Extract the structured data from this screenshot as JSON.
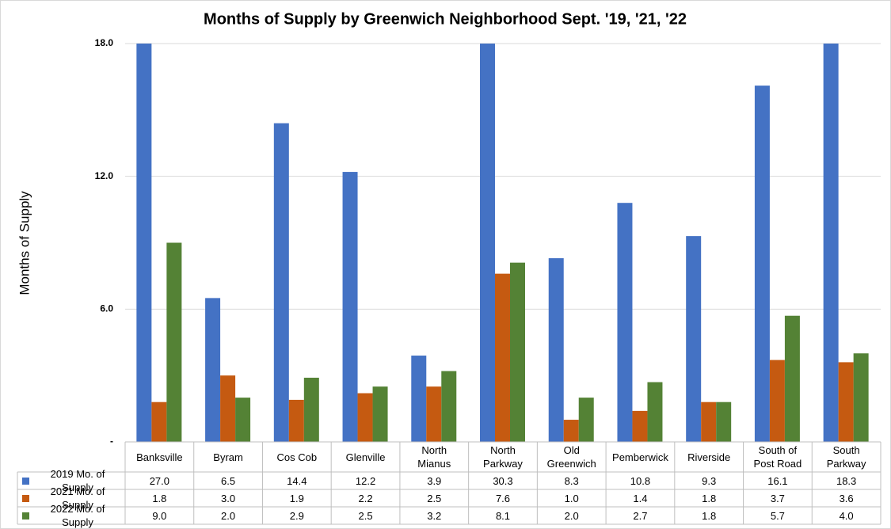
{
  "chart_data": {
    "type": "bar",
    "title": "Months of Supply by Greenwich Neighborhood Sept. '19, '21, '22",
    "y_label": "Months of Supply",
    "categories": [
      "Banksville",
      "Byram",
      "Cos Cob",
      "Glenville",
      "North Mianus",
      "North Parkway",
      "Old Greenwich",
      "Pemberwick",
      "Riverside",
      "South of Post Road",
      "South Parkway"
    ],
    "series": [
      {
        "name": "2019 Mo. of Supply",
        "color": "#4472c4",
        "values": [
          27.0,
          6.5,
          14.4,
          12.2,
          3.9,
          30.3,
          8.3,
          10.8,
          9.3,
          16.1,
          18.3
        ],
        "value_labels": [
          "27.0",
          "6.5",
          "14.4",
          "12.2",
          "3.9",
          "30.3",
          "8.3",
          "10.8",
          "9.3",
          "16.1",
          "18.3"
        ]
      },
      {
        "name": "2021 Mo. of Supply",
        "color": "#c55a11",
        "values": [
          1.8,
          3.0,
          1.9,
          2.2,
          2.5,
          7.6,
          1.0,
          1.4,
          1.8,
          3.7,
          3.6
        ],
        "value_labels": [
          "1.8",
          "3.0",
          "1.9",
          "2.2",
          "2.5",
          "7.6",
          "1.0",
          "1.4",
          "1.8",
          "3.7",
          "3.6"
        ]
      },
      {
        "name": "2022 Mo. of Supply",
        "color": "#548235",
        "values": [
          9.0,
          2.0,
          2.9,
          2.5,
          3.2,
          8.1,
          2.0,
          2.7,
          1.8,
          5.7,
          4.0
        ],
        "value_labels": [
          "9.0",
          "2.0",
          "2.9",
          "2.5",
          "3.2",
          "8.1",
          "2.0",
          "2.7",
          "1.8",
          "5.7",
          "4.0"
        ]
      }
    ],
    "ylim": [
      0,
      18
    ],
    "yticks": [
      {
        "value": 0,
        "label": "-"
      },
      {
        "value": 6,
        "label": "6.0"
      },
      {
        "value": 12,
        "label": "12.0"
      },
      {
        "value": 18,
        "label": "18.0"
      }
    ],
    "grid": true
  }
}
